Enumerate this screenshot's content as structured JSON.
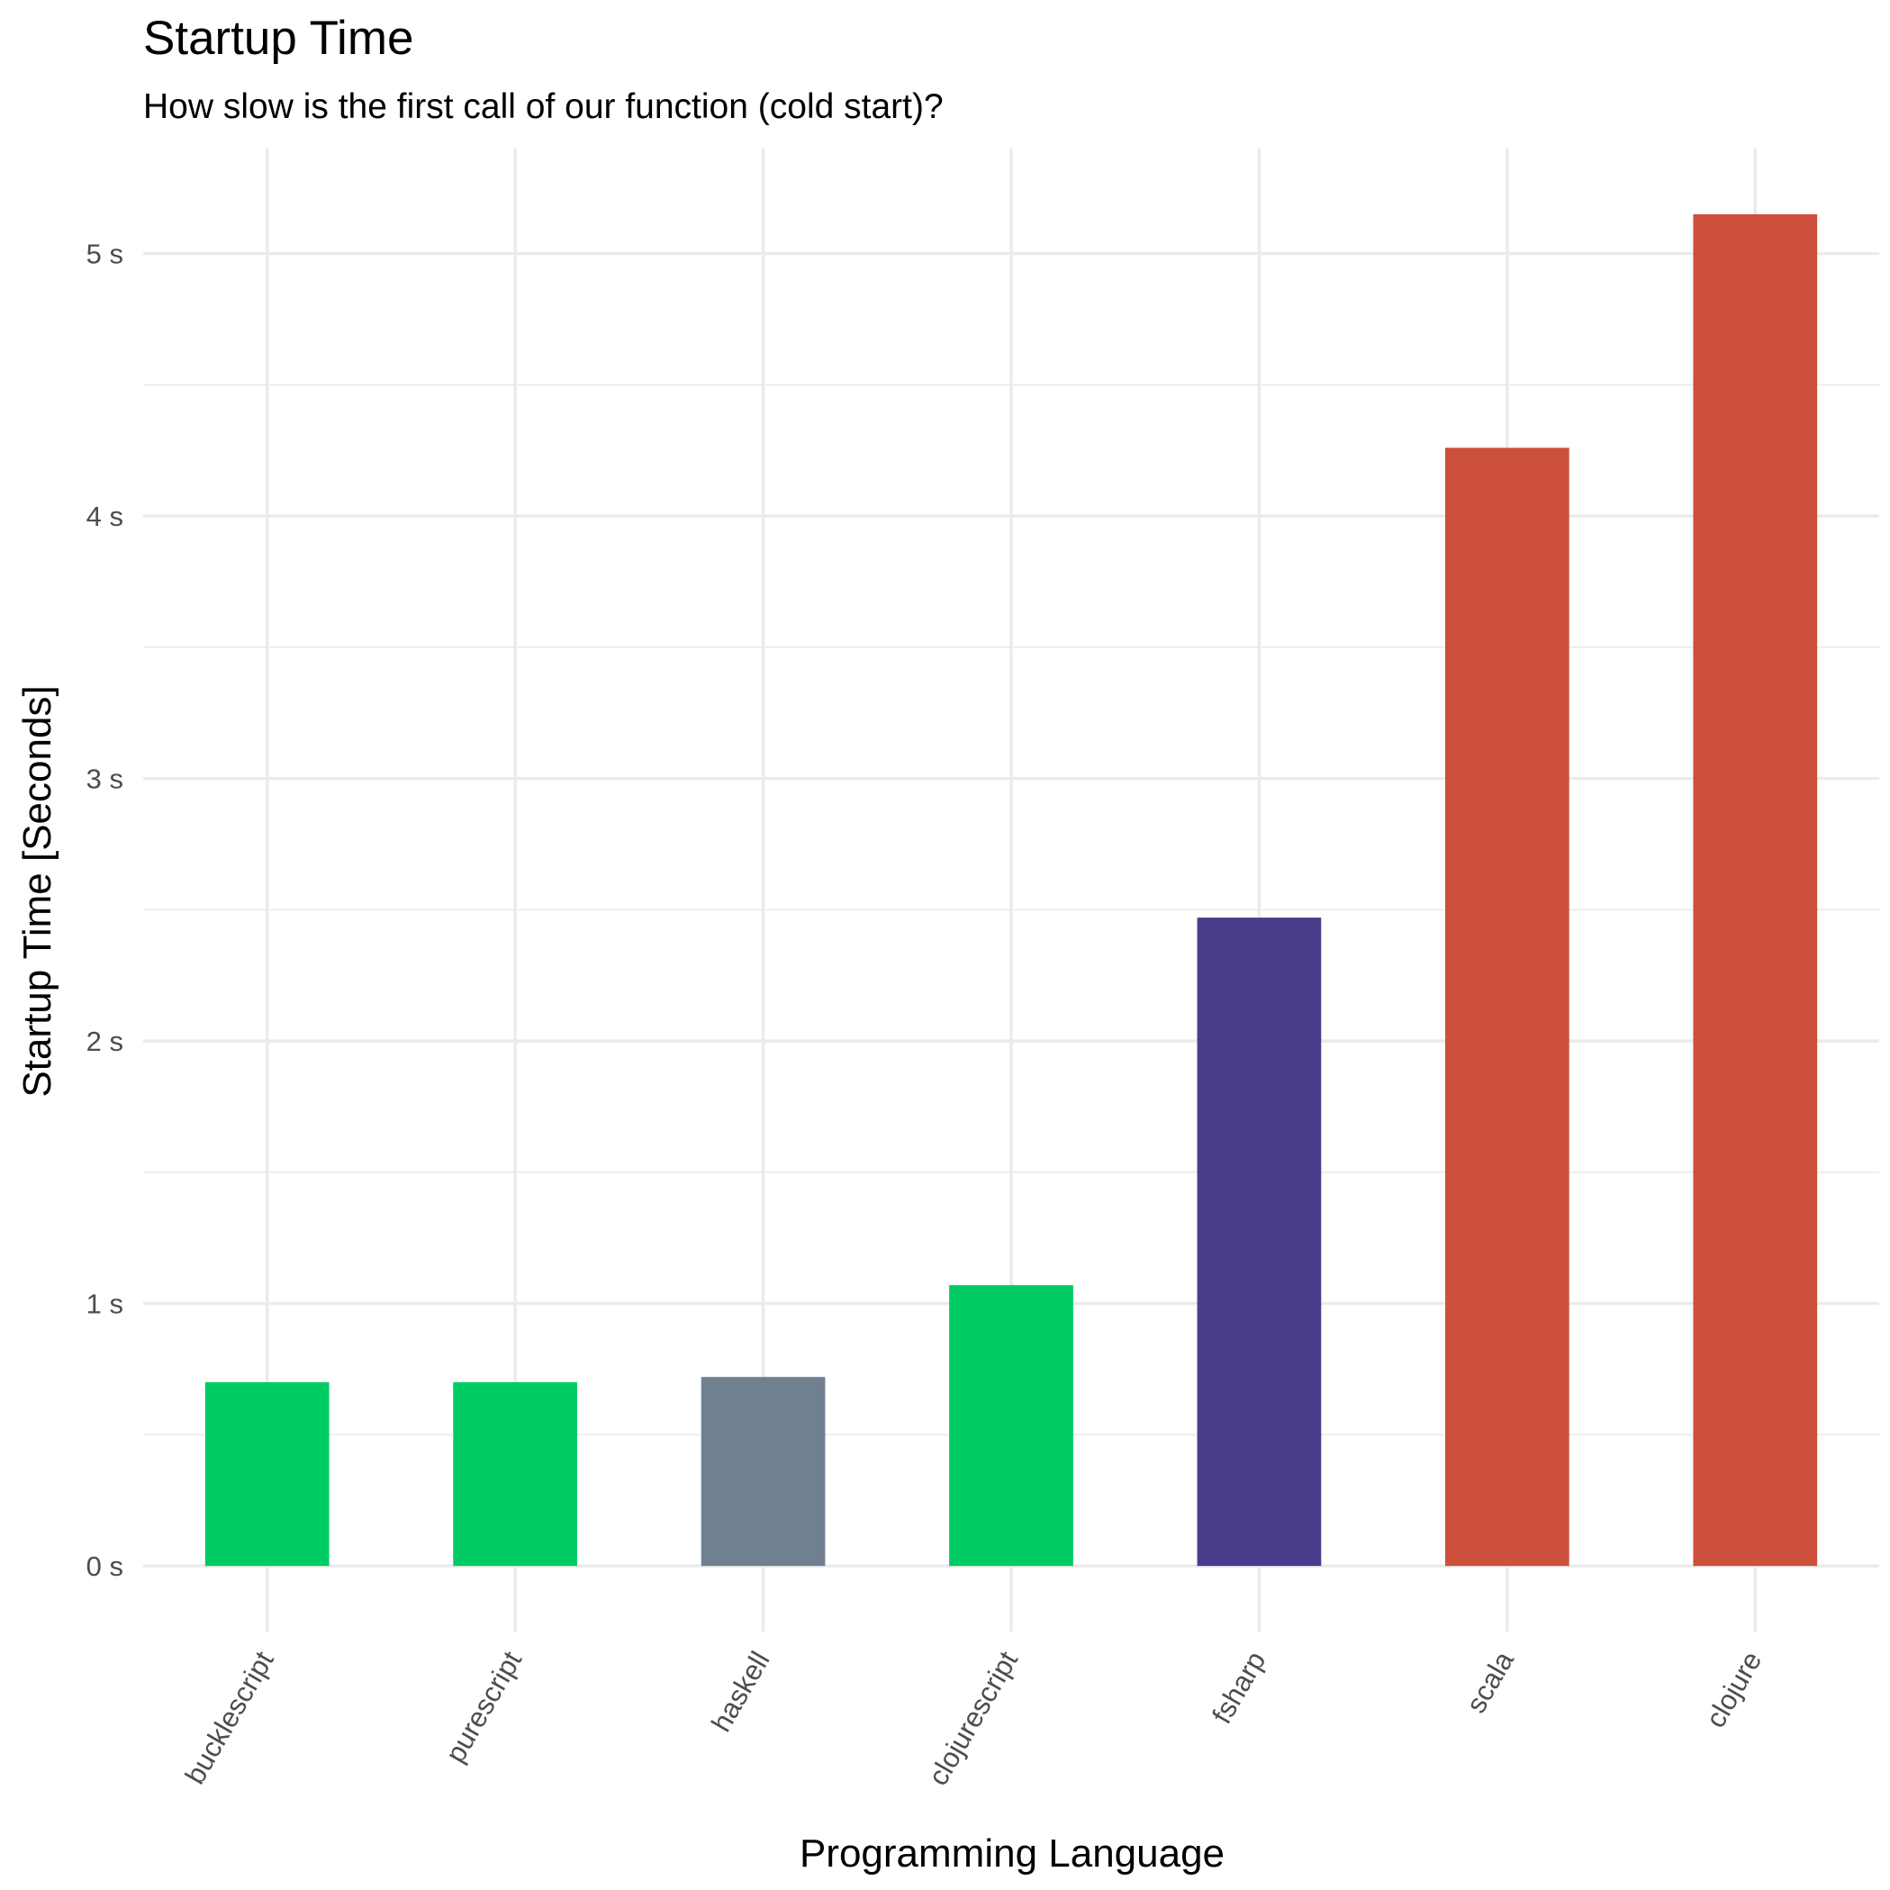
{
  "chart_data": {
    "type": "bar",
    "title": "Startup Time",
    "subtitle": "How slow is the first call of our function (cold start)?",
    "xlabel": "Programming Language",
    "ylabel": "Startup Time [Seconds]",
    "categories": [
      "bucklescript",
      "purescript",
      "haskell",
      "clojurescript",
      "fsharp",
      "scala",
      "clojure"
    ],
    "values": [
      0.7,
      0.7,
      0.72,
      1.07,
      2.47,
      4.26,
      5.15
    ],
    "colors": [
      "#00cc66",
      "#00cc66",
      "#708090",
      "#00cc66",
      "#483d8b",
      "#cd503c",
      "#cd503c"
    ],
    "ylim": [
      -0.25,
      5.4
    ],
    "yticks": [
      0,
      1,
      2,
      3,
      4,
      5
    ],
    "ytick_labels": [
      "0 s",
      "1 s",
      "2 s",
      "3 s",
      "4 s",
      "5 s"
    ],
    "grid": true,
    "legend": "none"
  }
}
